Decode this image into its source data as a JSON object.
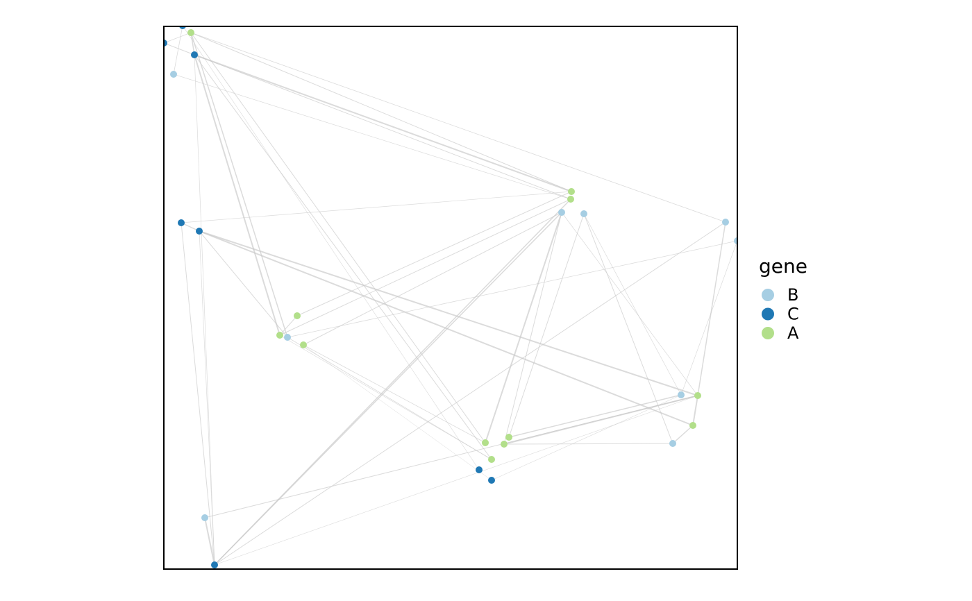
{
  "legend": {
    "title": "gene",
    "entries": [
      {
        "label": "B",
        "color": "#a6cee3"
      },
      {
        "label": "C",
        "color": "#1f78b4"
      },
      {
        "label": "A",
        "color": "#b2df8a"
      }
    ]
  }
}
